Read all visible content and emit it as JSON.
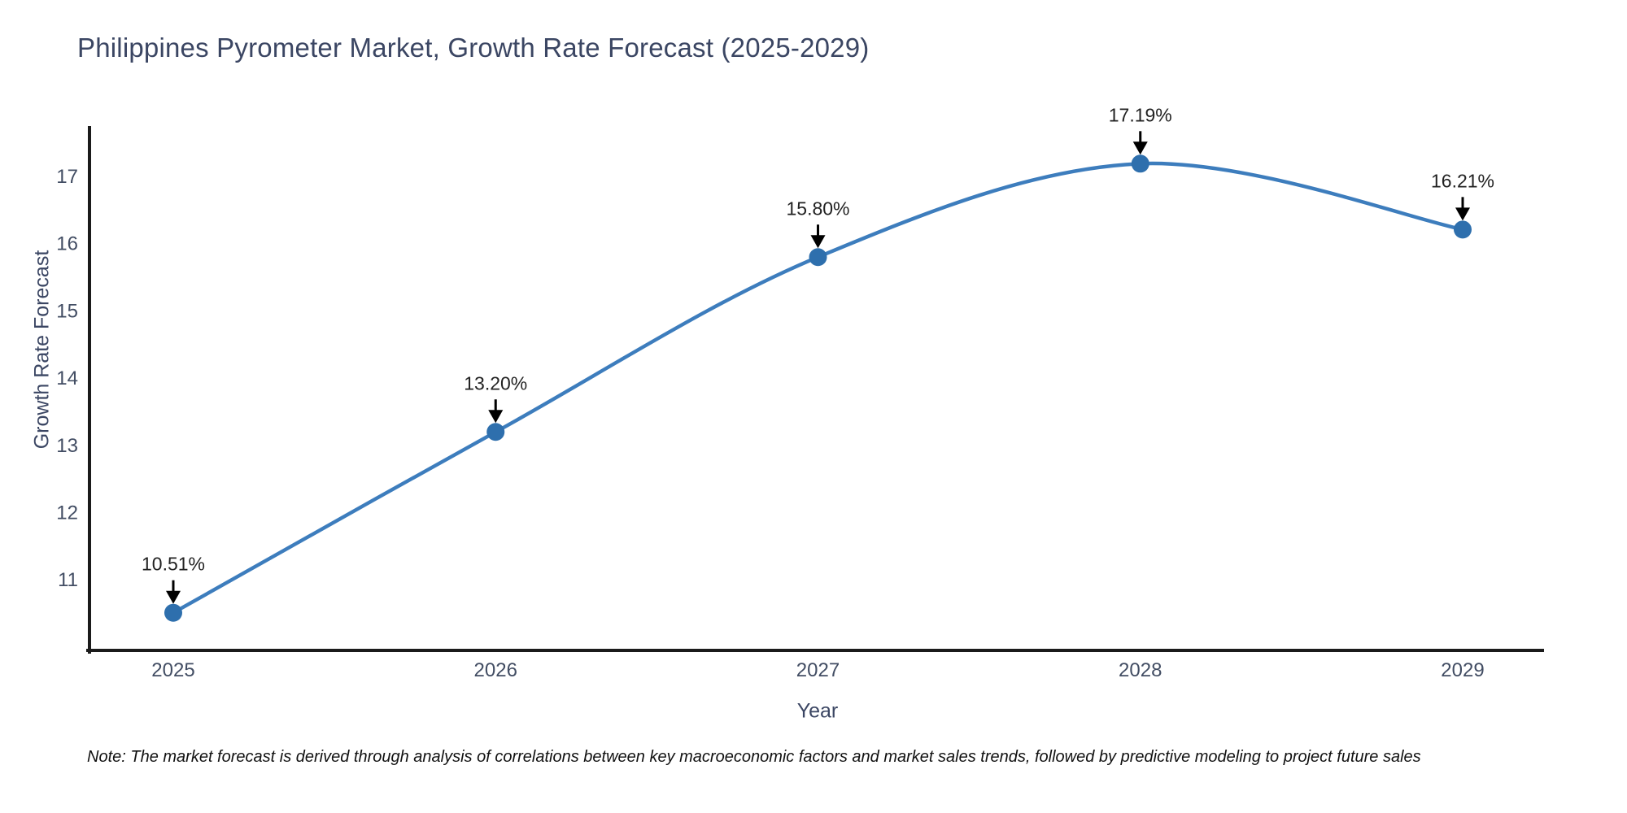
{
  "title": "Philippines Pyrometer Market, Growth Rate Forecast (2025-2029)",
  "note": "Note: The market forecast is derived through analysis of correlations between key macroeconomic factors and market sales trends, followed by predictive modeling to project future sales",
  "chart_data": {
    "type": "line",
    "title": "Philippines Pyrometer Market, Growth Rate Forecast (2025-2029)",
    "xlabel": "Year",
    "ylabel": "Growth Rate Forecast",
    "categories": [
      "2025",
      "2026",
      "2027",
      "2028",
      "2029"
    ],
    "values": [
      10.51,
      13.2,
      15.8,
      17.19,
      16.21
    ],
    "point_labels": [
      "10.51%",
      "13.20%",
      "15.80%",
      "17.19%",
      "16.21%"
    ],
    "y_ticks": [
      11,
      12,
      13,
      14,
      15,
      16,
      17
    ],
    "ylim": [
      9.95,
      17.75
    ],
    "grid": false,
    "legend": "none",
    "line_shape": "spline",
    "annotation_style": "value label with black arrow pointing to marker"
  },
  "colors": {
    "line": "#3d7dbd",
    "marker": "#2e6fad",
    "axis": "#1b1b1b",
    "tick_text": "#424d63",
    "heading_text": "#3b4663",
    "annotation_text": "#222222",
    "note_text": "#111111",
    "background": "#ffffff"
  }
}
